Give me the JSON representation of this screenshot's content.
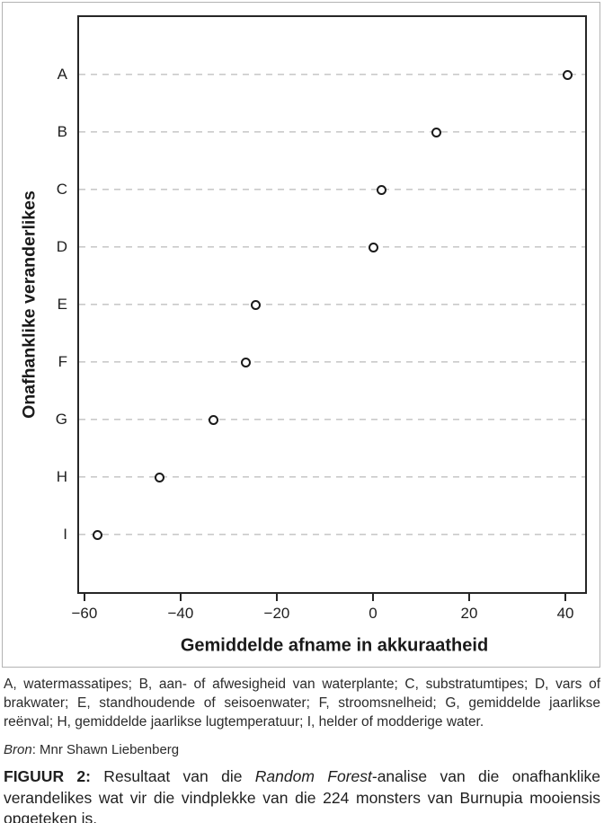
{
  "chart_data": {
    "type": "scatter",
    "subtype": "dot-plot",
    "title": "",
    "xlabel": "Gemiddelde afname in akkuraatheid",
    "ylabel": "Onafhanklike veranderlikes",
    "categories": [
      "A",
      "B",
      "C",
      "D",
      "E",
      "F",
      "G",
      "H",
      "I"
    ],
    "values": [
      40.4,
      13.2,
      1.7,
      0.1,
      -24.4,
      -26.4,
      -33.1,
      -44.3,
      -57.3
    ],
    "xlim": [
      -61.1,
      44.1
    ],
    "x_ticks": [
      -60,
      -40,
      -20,
      0,
      20,
      40
    ],
    "x_tick_labels": [
      "−60",
      "−40",
      "−20",
      "0",
      "20",
      "40"
    ],
    "grid": "horizontal-dashed",
    "legend_position": "none",
    "marker": "open-circle"
  },
  "caption": {
    "legend": "A, watermassatipes; B, aan- of afwesigheid van waterplante; C, substratumtipes; D, vars of brakwater; E, standhoudende of seisoenwater; F, stroomsnelheid; G, gemiddelde jaarlikse reënval; H, gemiddelde jaarlikse lugtemperatuur; I, helder of modderige water.",
    "source_segments": [
      {
        "text": "Bron",
        "italic": true
      },
      {
        "text": ": Mnr Shawn Liebenberg"
      }
    ],
    "figure_segments": [
      {
        "text": "FIGUUR 2:",
        "bold": true
      },
      {
        "text": " Resultaat van die "
      },
      {
        "text": "Random Forest",
        "italic": true
      },
      {
        "text": "-analise van die onafhanklike verandelikes wat vir die vindplekke van die 224 monsters van Burnupia mooiensis opgeteken is."
      }
    ]
  },
  "colors": {
    "frame_border": "#b3b3b3",
    "axis": "#262626",
    "gridline": "#c9c9c9",
    "marker_stroke": "#1a1a1a",
    "text": "#262626",
    "background": "#ffffff"
  }
}
